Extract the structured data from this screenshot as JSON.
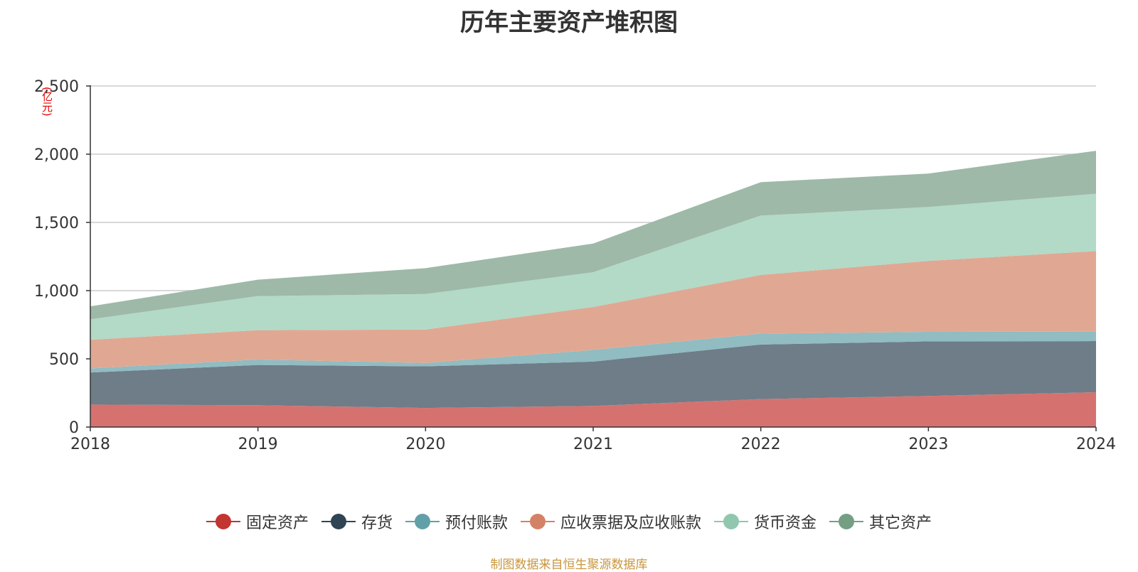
{
  "chart_data": {
    "type": "area",
    "stacked": true,
    "title": "历年主要资产堆积图",
    "unit": "(亿元)",
    "categories": [
      "2018",
      "2019",
      "2020",
      "2021",
      "2022",
      "2023",
      "2024"
    ],
    "ylim": [
      0,
      2500
    ],
    "yticks": [
      0,
      500,
      1000,
      1500,
      2000,
      2500
    ],
    "ytick_labels": [
      "0",
      "500",
      "1,000",
      "1,500",
      "2,000",
      "2,500"
    ],
    "grid": true,
    "legend_position": "bottom",
    "series": [
      {
        "name": "固定资产",
        "values": [
          165,
          160,
          140,
          155,
          205,
          228,
          255
        ],
        "color": "#c23531",
        "fill": "#d57270"
      },
      {
        "name": "存货",
        "values": [
          235,
          295,
          305,
          325,
          400,
          400,
          375
        ],
        "color": "#2f4554",
        "fill": "#6e7d88"
      },
      {
        "name": "预付账款",
        "values": [
          30,
          40,
          25,
          85,
          80,
          70,
          70
        ],
        "color": "#61a0a8",
        "fill": "#90bcc2"
      },
      {
        "name": "应收票据及应收账款",
        "values": [
          210,
          215,
          245,
          315,
          430,
          520,
          590
        ],
        "color": "#d48265",
        "fill": "#e0a893"
      },
      {
        "name": "货币资金",
        "values": [
          150,
          250,
          260,
          255,
          435,
          395,
          420
        ],
        "color": "#91c7ae",
        "fill": "#b2dac7"
      },
      {
        "name": "其它资产",
        "values": [
          95,
          120,
          190,
          210,
          245,
          245,
          315
        ],
        "color": "#749f83",
        "fill": "#9eb9a8"
      }
    ]
  },
  "source_note": "制图数据来自恒生聚源数据库"
}
